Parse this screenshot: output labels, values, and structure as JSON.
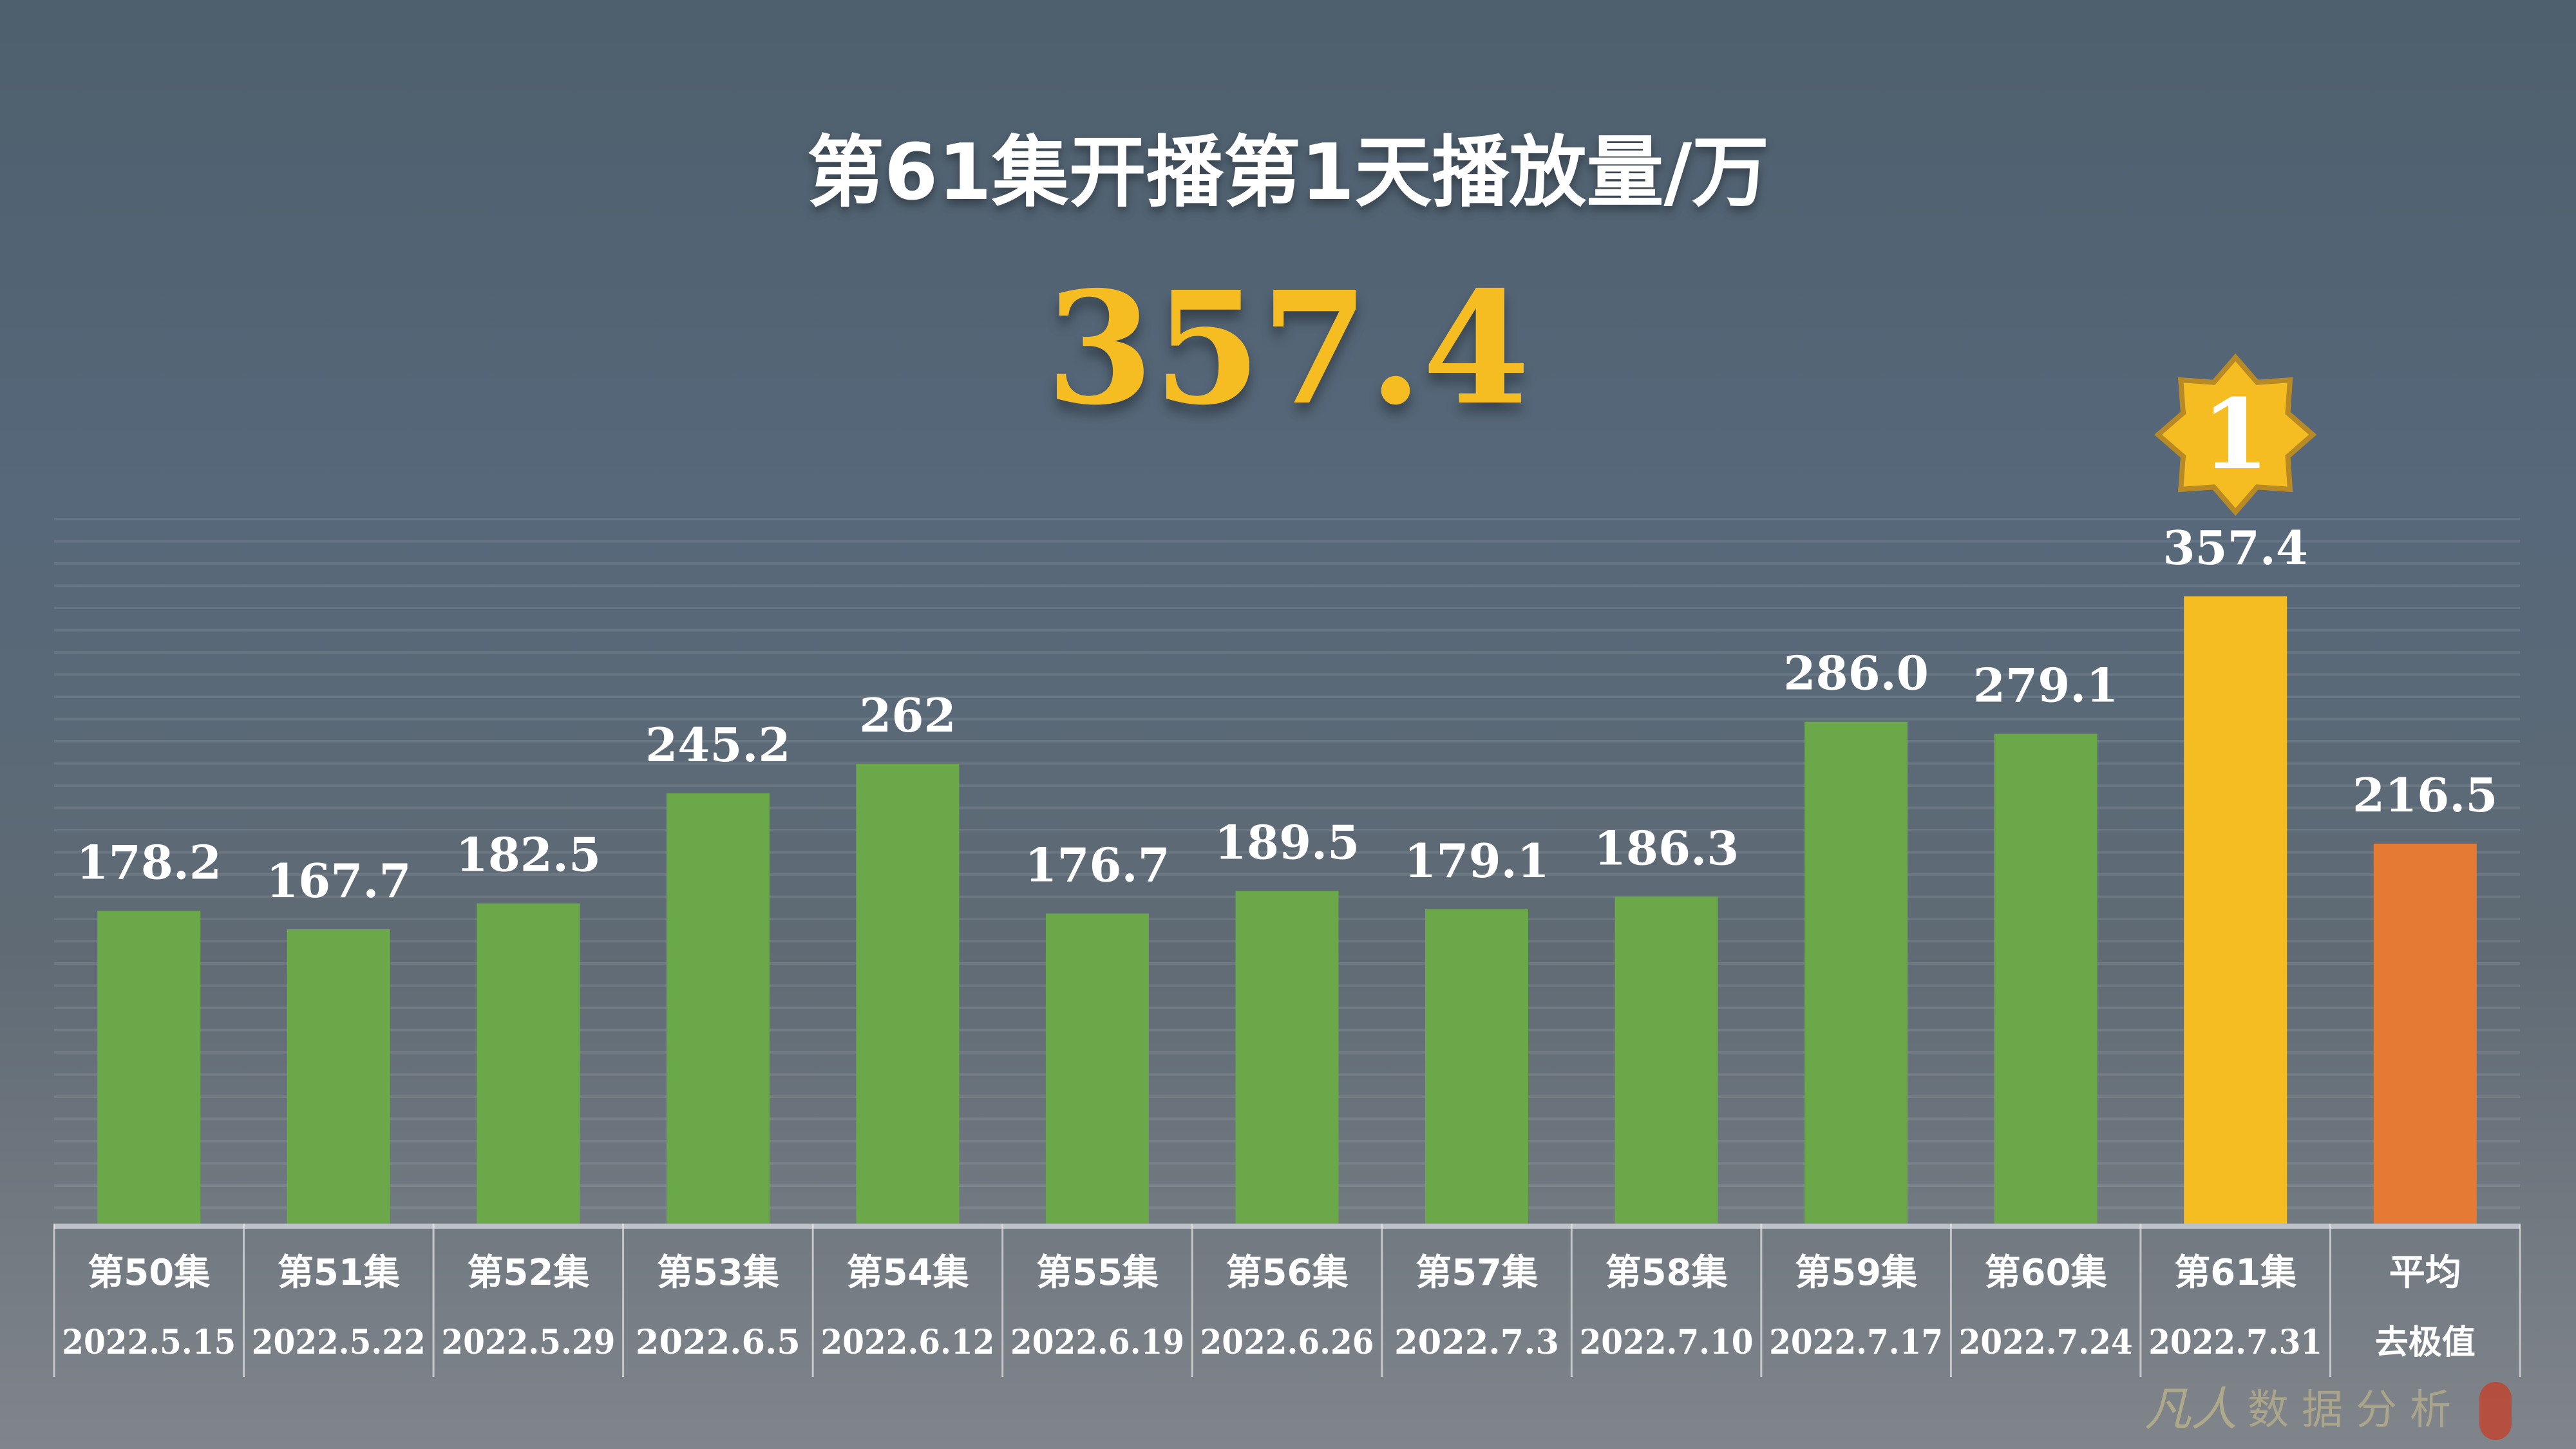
{
  "title": "第61集开播第1天播放量/万",
  "highlight_value": "357.4",
  "watermark": {
    "logo": "凡人",
    "text": "数据分析"
  },
  "colors": {
    "normal": "#6aa84a",
    "highlight": "#f6bd22",
    "average": "#e57a35",
    "badge_border": "#b88a25"
  },
  "chart_data": {
    "type": "bar",
    "title": "第61集开播第1天播放量/万",
    "categories": [
      "第50集",
      "第51集",
      "第52集",
      "第53集",
      "第54集",
      "第55集",
      "第56集",
      "第57集",
      "第58集",
      "第59集",
      "第60集",
      "第61集",
      "平均"
    ],
    "dates": [
      "2022.5.15",
      "2022.5.22",
      "2022.5.29",
      "2022.6.5",
      "2022.6.12",
      "2022.6.19",
      "2022.6.26",
      "2022.7.3",
      "2022.7.10",
      "2022.7.17",
      "2022.7.24",
      "2022.7.31",
      "去极值"
    ],
    "values": [
      178.2,
      167.7,
      182.5,
      245.2,
      262,
      176.7,
      189.5,
      179.1,
      186.3,
      286.0,
      279.1,
      357.4,
      216.5
    ],
    "labels": [
      "178.2",
      "167.7",
      "182.5",
      "245.2",
      "262",
      "176.7",
      "189.5",
      "179.1",
      "186.3",
      "286.0",
      "279.1",
      "357.4",
      "216.5"
    ],
    "highlight_index": 11,
    "average_index": 12,
    "badge": {
      "text": "1",
      "index": 11
    },
    "ylim": [
      0,
      400
    ],
    "grid": true,
    "legend": "none"
  }
}
